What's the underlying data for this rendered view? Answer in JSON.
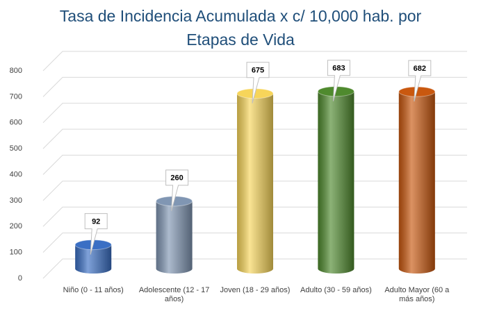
{
  "chart_data": {
    "type": "bar",
    "title": "Tasa de Incidencia Acumulada x c/ 10,000 hab. por Etapas de Vida",
    "categories": [
      "Niño (0 - 11 años)",
      "Adolescente (12 - 17 años)",
      "Joven (18 - 29 años)",
      "Adulto (30 - 59 años)",
      "Adulto Mayor (60 a más años)"
    ],
    "values": [
      92,
      260,
      675,
      683,
      682
    ],
    "colors": [
      "#3a6fc4",
      "#8096b3",
      "#f7d55a",
      "#4f8a2e",
      "#c9580f"
    ],
    "ylim": [
      0,
      800
    ],
    "yticks": [
      0,
      100,
      200,
      300,
      400,
      500,
      600,
      700,
      800
    ],
    "grid": true
  }
}
